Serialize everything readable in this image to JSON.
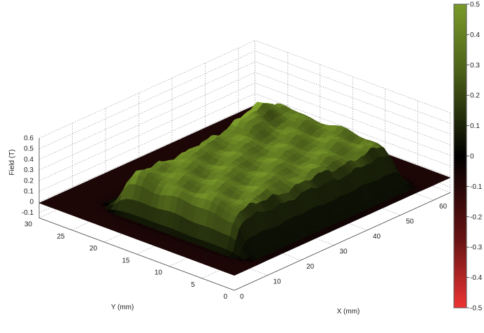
{
  "chart_data": {
    "type": "surface3d",
    "title": "",
    "xlabel": "X (mm)",
    "ylabel": "Y (mm)",
    "zlabel": "Field (T)",
    "x_ticks": [
      "0",
      "10",
      "20",
      "30",
      "40",
      "50",
      "60"
    ],
    "y_ticks": [
      "0",
      "5",
      "10",
      "15",
      "20",
      "25",
      "30"
    ],
    "z_ticks": [
      "-0.1",
      "0",
      "0.1",
      "0.2",
      "0.3",
      "0.4",
      "0.5",
      "0.6"
    ],
    "colorbar_ticks": [
      "0.5",
      "0.4",
      "0.3",
      "0.2",
      "0.1",
      "0",
      "-0.1",
      "-0.2",
      "-0.3",
      "-0.4",
      "-0.5"
    ],
    "xlim": [
      0,
      65
    ],
    "ylim": [
      0,
      30
    ],
    "zlim": [
      -0.15,
      0.6
    ],
    "clim": [
      -0.5,
      0.5
    ],
    "grid": true,
    "colormap": {
      "low": "#ee3333",
      "mid": "#000000",
      "high": "#7a9a2a"
    },
    "plateau": {
      "x_range": [
        8,
        56
      ],
      "y_range": [
        3,
        22
      ],
      "base_level": 0.36,
      "peak_level": 0.52
    }
  }
}
